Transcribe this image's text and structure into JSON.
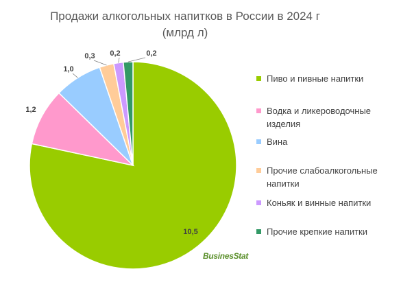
{
  "title": {
    "line1": "Продажи алкогольных напитков в России в 2024 г",
    "line2": "(млрд л)"
  },
  "logo_text": "BusinesStat",
  "chart_data": {
    "type": "pie",
    "title": "Продажи алкогольных напитков в России в 2024 г (млрд л)",
    "legend_position": "right",
    "start_angle_deg": 0,
    "direction": "clockwise",
    "slices": [
      {
        "name": "Пиво и пивные напитки",
        "value": 10.5,
        "label": "10,5",
        "color": "#99cc00"
      },
      {
        "name": "Водка и ликероводочные изделия",
        "value": 1.2,
        "label": "1,2",
        "color": "#ff99cc"
      },
      {
        "name": "Вина",
        "value": 1.0,
        "label": "1,0",
        "color": "#99ccff"
      },
      {
        "name": "Прочие слабоалкогольные напитки",
        "value": 0.3,
        "label": "0,3",
        "color": "#ffcc99"
      },
      {
        "name": "Коньяк и винные напитки",
        "value": 0.2,
        "label": "0,2",
        "color": "#cc99ff"
      },
      {
        "name": "Прочие крепкие напитки",
        "value": 0.2,
        "label": "0,2",
        "color": "#339966"
      }
    ]
  }
}
